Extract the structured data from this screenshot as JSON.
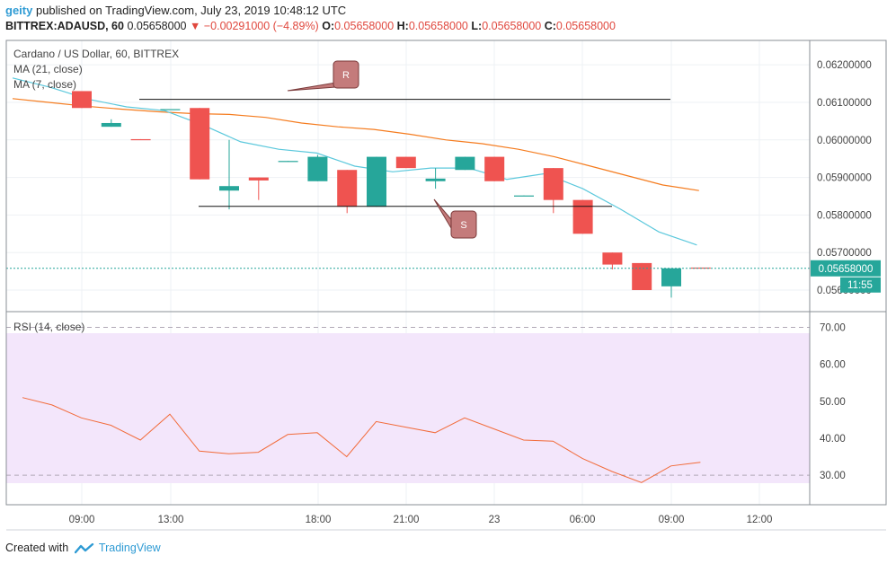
{
  "header": {
    "user": "geity",
    "published_text": "published on TradingView.com, July 23, 2019 10:48:12 UTC",
    "symbol": "BITTREX:ADAUSD, 60",
    "last": "0.05658000",
    "change_arrow": "▼",
    "change": "−0.00291000 (−4.89%)",
    "o_label": "O:",
    "o_value": "0.05658000",
    "h_label": "H:",
    "h_value": "0.05658000",
    "l_label": "L:",
    "l_value": "0.05658000",
    "c_label": "C:",
    "c_value": "0.05658000"
  },
  "legend": {
    "title": "Cardano / US Dollar, 60, BITTREX",
    "ma21": "MA (21, close)",
    "ma7": "MA (7, close)",
    "rsi": "RSI (14, close)"
  },
  "annotations": {
    "resistance": "R",
    "support": "S"
  },
  "price_badge": {
    "value": "0.05658000",
    "countdown": "11:55"
  },
  "footer": {
    "created_with": "Created with",
    "brand": "TradingView"
  },
  "colors": {
    "up": "#26a69a",
    "down": "#ef5350",
    "ma21": "#f57c1f",
    "ma7": "#5bc8dc",
    "rsi_line": "#f26b3a",
    "rsi_band": "#f3e6fb",
    "annotation": "#c47b7b"
  },
  "chart_data": [
    {
      "type": "candlestick",
      "title": "Cardano / US Dollar, 60, BITTREX",
      "x_tick_labels": [
        "09:00",
        "13:00",
        "18:00",
        "21:00",
        "23",
        "06:00",
        "09:00",
        "12:00"
      ],
      "y_tick_labels": [
        "0.06200000",
        "0.06100000",
        "0.06000000",
        "0.05900000",
        "0.05800000",
        "0.05700000",
        "0.05600000"
      ],
      "ylim": [
        0.05545,
        0.06265
      ],
      "candles": [
        {
          "o": 0.0613,
          "h": 0.0613,
          "l": 0.06085,
          "c": 0.06085
        },
        {
          "o": 0.06035,
          "h": 0.06055,
          "l": 0.06035,
          "c": 0.06045
        },
        {
          "o": 0.06002,
          "h": 0.06002,
          "l": 0.06,
          "c": 0.06
        },
        {
          "o": 0.0608,
          "h": 0.06082,
          "l": 0.0608,
          "c": 0.06082
        },
        {
          "o": 0.06085,
          "h": 0.06085,
          "l": 0.05895,
          "c": 0.05895
        },
        {
          "o": 0.05865,
          "h": 0.06,
          "l": 0.05815,
          "c": 0.05877
        },
        {
          "o": 0.059,
          "h": 0.059,
          "l": 0.0584,
          "c": 0.05892
        },
        {
          "o": 0.05942,
          "h": 0.05944,
          "l": 0.05942,
          "c": 0.05944
        },
        {
          "o": 0.0589,
          "h": 0.0596,
          "l": 0.0589,
          "c": 0.05955
        },
        {
          "o": 0.0592,
          "h": 0.0592,
          "l": 0.05805,
          "c": 0.05822
        },
        {
          "o": 0.05822,
          "h": 0.05955,
          "l": 0.05822,
          "c": 0.05955
        },
        {
          "o": 0.05955,
          "h": 0.05955,
          "l": 0.05925,
          "c": 0.05925
        },
        {
          "o": 0.0589,
          "h": 0.05925,
          "l": 0.0587,
          "c": 0.05897
        },
        {
          "o": 0.0592,
          "h": 0.05955,
          "l": 0.0592,
          "c": 0.05955
        },
        {
          "o": 0.05955,
          "h": 0.05955,
          "l": 0.0589,
          "c": 0.0589
        },
        {
          "o": 0.0585,
          "h": 0.05852,
          "l": 0.0585,
          "c": 0.05852
        },
        {
          "o": 0.05925,
          "h": 0.05925,
          "l": 0.05805,
          "c": 0.0584
        },
        {
          "o": 0.0584,
          "h": 0.0584,
          "l": 0.0575,
          "c": 0.0575
        },
        {
          "o": 0.057,
          "h": 0.057,
          "l": 0.05655,
          "c": 0.05668
        },
        {
          "o": 0.05672,
          "h": 0.05672,
          "l": 0.056,
          "c": 0.056
        },
        {
          "o": 0.0561,
          "h": 0.05658,
          "l": 0.0558,
          "c": 0.05658
        },
        {
          "o": 0.0566,
          "h": 0.0566,
          "l": 0.05658,
          "c": 0.05658
        }
      ],
      "series": [
        {
          "name": "MA (21, close)",
          "values": [
            0.0611,
            0.061,
            0.0609,
            0.06082,
            0.06075,
            0.0607,
            0.06068,
            0.0606,
            0.06045,
            0.06035,
            0.06028,
            0.06015,
            0.06,
            0.0599,
            0.05975,
            0.05955,
            0.0593,
            0.05905,
            0.0588,
            0.05865
          ]
        },
        {
          "name": "MA (7, close)",
          "values": [
            0.06165,
            0.0614,
            0.06108,
            0.06088,
            0.06078,
            0.0604,
            0.05995,
            0.05975,
            0.05965,
            0.0593,
            0.05915,
            0.05925,
            0.05925,
            0.05895,
            0.0591,
            0.0587,
            0.05815,
            0.05755,
            0.0572
          ]
        }
      ],
      "resistance": 0.06108,
      "support": 0.05823,
      "last_price": 0.05658
    },
    {
      "type": "line",
      "title": "RSI (14, close)",
      "y_tick_labels": [
        "70.00",
        "60.00",
        "50.00",
        "40.00",
        "30.00"
      ],
      "ylim": [
        22,
        74
      ],
      "band": [
        30,
        70
      ],
      "series": [
        {
          "name": "RSI (14, close)",
          "values": [
            51,
            49,
            45.5,
            43.5,
            39.5,
            46.5,
            36.5,
            35.8,
            36.2,
            41,
            41.5,
            35,
            44.5,
            43,
            41.5,
            45.5,
            42.5,
            39.5,
            39.2,
            34.5,
            31,
            28,
            32.5,
            33.5
          ]
        }
      ]
    }
  ]
}
